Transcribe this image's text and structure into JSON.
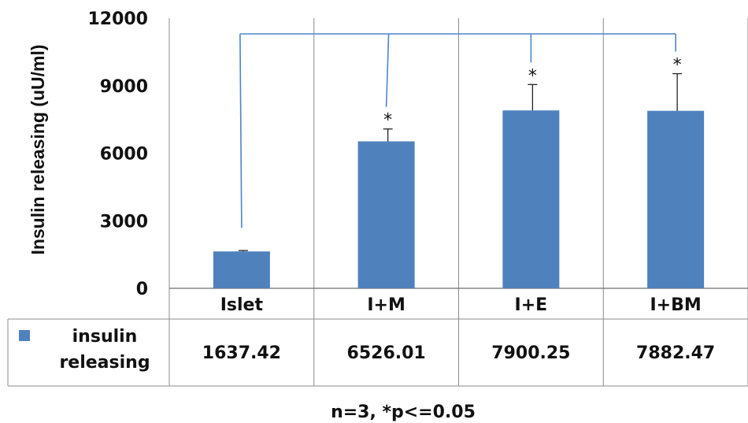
{
  "chart_data": {
    "type": "bar",
    "ylabel": "Insulin releasing (uU/ml)",
    "ylim": [
      0,
      12000
    ],
    "yticks": [
      "0",
      "3000",
      "6000",
      "9000",
      "12000"
    ],
    "categories": [
      "Islet",
      "I+M",
      "I+E",
      "I+BM"
    ],
    "series": [
      {
        "name": "insulin releasing",
        "values": [
          1637.42,
          6526.01,
          7900.25,
          7882.47
        ],
        "value_labels": [
          "1637.42",
          "6526.01",
          "7900.25",
          "7882.47"
        ],
        "error": [
          40,
          550,
          1150,
          1650
        ],
        "color": "#4f81bd"
      }
    ],
    "significance": [
      "",
      "*",
      "*",
      "*"
    ],
    "comparison_bracket": {
      "from": "Islet",
      "to": [
        "I+M",
        "I+E",
        "I+BM"
      ],
      "color": "#4a86c8"
    },
    "grid": "vertical",
    "legend": "data-table-bottom",
    "footnote": "n=3, *p<=0.05"
  }
}
